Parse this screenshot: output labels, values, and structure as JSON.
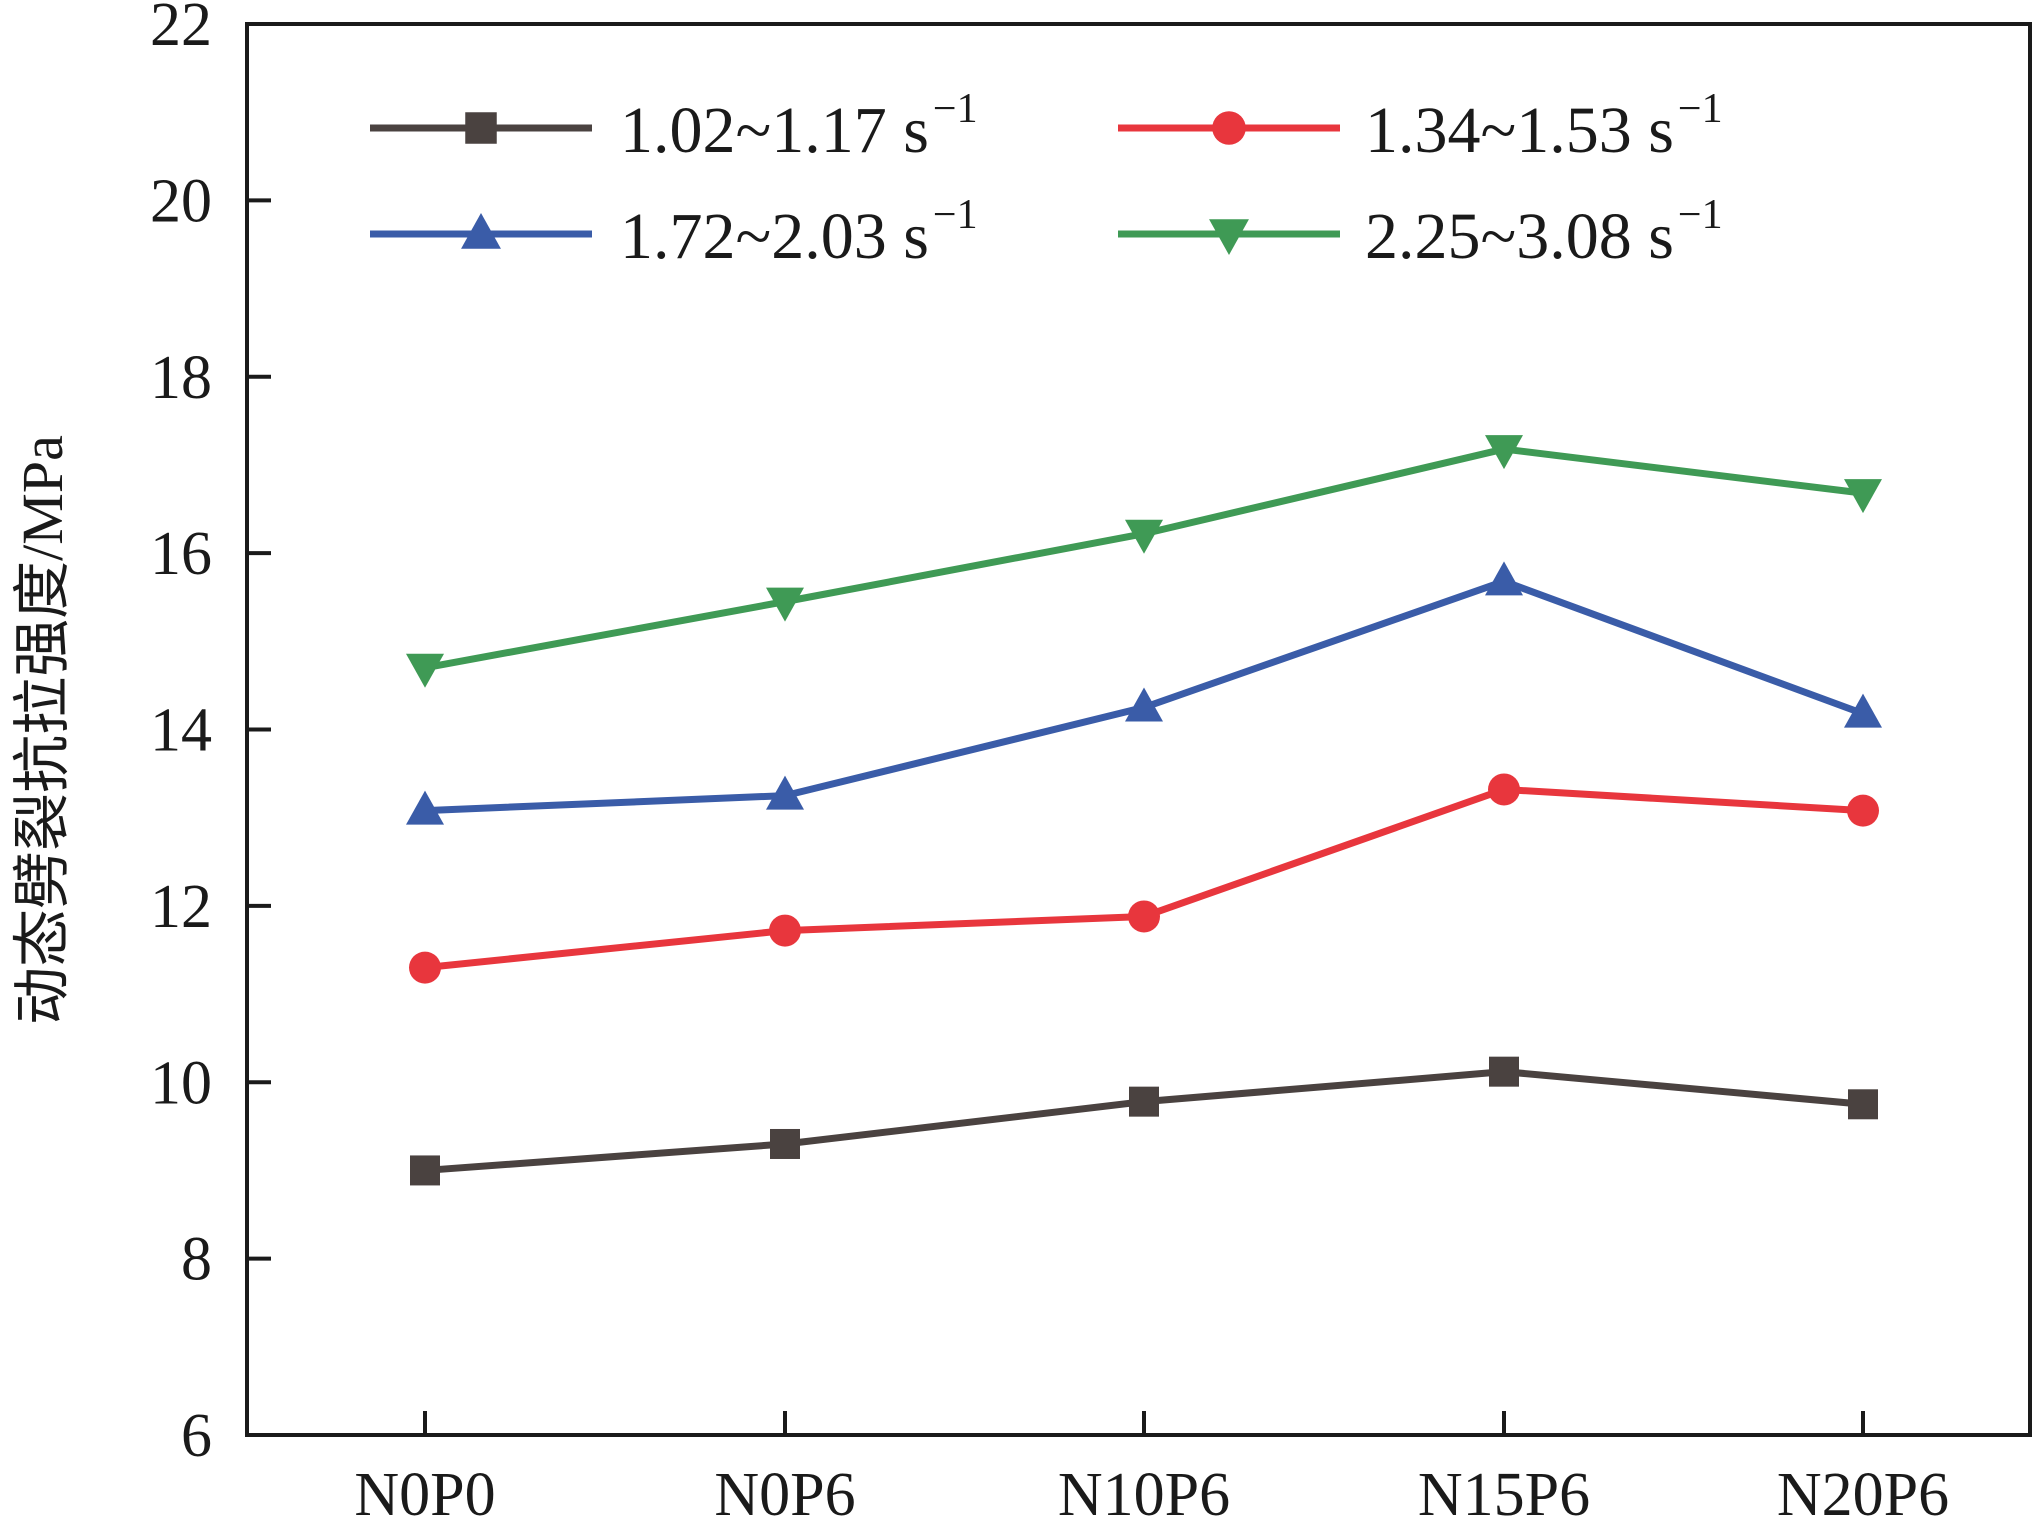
{
  "chart_data": {
    "type": "line",
    "categories": [
      "N0P0",
      "N0P6",
      "N10P6",
      "N15P6",
      "N20P6"
    ],
    "ylabel": "动态劈裂抗拉强度/MPa",
    "xlabel": "",
    "ylim": [
      6,
      22
    ],
    "yticks": [
      "6",
      "8",
      "10",
      "12",
      "14",
      "16",
      "18",
      "20",
      "22"
    ],
    "grid": false,
    "legend_position": "top",
    "series": [
      {
        "name": "1.02~1.17 s",
        "name_sup": "−1",
        "color": "#4a4240",
        "marker": "square",
        "values": [
          9.0,
          9.3,
          9.78,
          10.12,
          9.75
        ]
      },
      {
        "name": "1.34~1.53 s",
        "name_sup": "−1",
        "color": "#e8363d",
        "marker": "circle",
        "values": [
          11.3,
          11.72,
          11.88,
          13.32,
          13.08
        ]
      },
      {
        "name": "1.72~2.03 s",
        "name_sup": "−1",
        "color": "#3a5ca8",
        "marker": "triangle-up",
        "values": [
          13.08,
          13.25,
          14.25,
          15.68,
          14.18
        ]
      },
      {
        "name": "2.25~3.08 s",
        "name_sup": "−1",
        "color": "#3f9a55",
        "marker": "triangle-down",
        "values": [
          14.7,
          15.45,
          16.22,
          17.18,
          16.68
        ]
      }
    ]
  }
}
